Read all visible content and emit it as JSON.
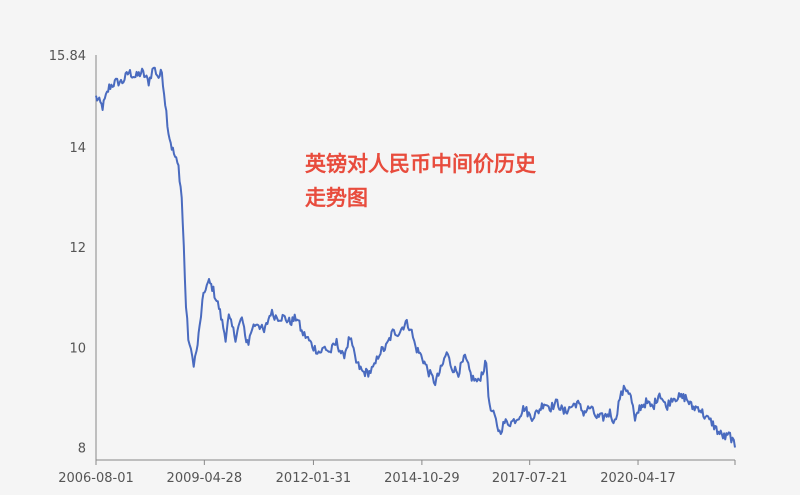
{
  "chart_data": {
    "type": "line",
    "title": [
      "英镑对人民币中间价历史",
      "走势图"
    ],
    "xlabel": "",
    "ylabel": "",
    "x_ticks": [
      "2006-08-01",
      "2009-04-28",
      "2012-01-31",
      "2014-10-29",
      "2017-07-21",
      "2020-04-17"
    ],
    "y_ticks": [
      "8",
      "10",
      "12",
      "14",
      "15.84"
    ],
    "ylim": [
      7.75,
      15.84
    ],
    "xlim": [
      "2006-08-01",
      "2022-09-30"
    ],
    "grid": false,
    "series": [
      {
        "color": "#4a6bbf",
        "x": [
          "2006-08-01",
          "2006-10-01",
          "2006-12-01",
          "2007-02-01",
          "2007-04-01",
          "2007-06-01",
          "2007-08-01",
          "2007-10-01",
          "2007-12-01",
          "2008-01-15",
          "2008-03-01",
          "2008-04-01",
          "2008-05-01",
          "2008-06-01",
          "2008-07-01",
          "2008-08-01",
          "2008-09-01",
          "2008-10-01",
          "2008-10-20",
          "2008-11-10",
          "2008-12-01",
          "2008-12-25",
          "2009-01-20",
          "2009-02-15",
          "2009-03-15",
          "2009-04-10",
          "2009-05-10",
          "2009-06-10",
          "2009-07-10",
          "2009-08-10",
          "2009-09-10",
          "2009-10-10",
          "2009-11-10",
          "2009-12-10",
          "2010-01-10",
          "2010-02-10",
          "2010-03-10",
          "2010-04-10",
          "2010-05-10",
          "2010-06-10",
          "2010-07-15",
          "2010-09-01",
          "2010-11-01",
          "2011-01-01",
          "2011-03-01",
          "2011-05-01",
          "2011-07-01",
          "2011-09-01",
          "2011-10-15",
          "2011-12-01",
          "2012-02-01",
          "2012-04-01",
          "2012-05-15",
          "2012-07-01",
          "2012-09-01",
          "2012-11-01",
          "2013-01-01",
          "2013-03-01",
          "2013-05-01",
          "2013-07-01",
          "2013-08-15",
          "2013-10-01",
          "2013-12-01",
          "2014-02-01",
          "2014-04-01",
          "2014-06-01",
          "2014-07-15",
          "2014-09-01",
          "2014-11-01",
          "2015-01-01",
          "2015-03-01",
          "2015-05-01",
          "2015-06-15",
          "2015-08-01",
          "2015-10-01",
          "2015-12-01",
          "2016-02-01",
          "2016-04-01",
          "2016-06-15",
          "2016-07-15",
          "2016-09-01",
          "2016-10-15",
          "2016-12-01",
          "2017-02-01",
          "2017-04-01",
          "2017-06-01",
          "2017-08-01",
          "2017-10-01",
          "2017-12-01",
          "2018-02-01",
          "2018-04-01",
          "2018-06-01",
          "2018-08-01",
          "2018-10-01",
          "2018-12-01",
          "2019-02-01",
          "2019-04-01",
          "2019-06-01",
          "2019-08-01",
          "2019-09-15",
          "2019-11-01",
          "2019-12-20",
          "2020-02-01",
          "2020-03-01",
          "2020-03-20",
          "2020-05-01",
          "2020-07-01",
          "2020-09-01",
          "2020-11-01",
          "2021-01-01",
          "2021-03-01",
          "2021-05-01",
          "2021-07-01",
          "2021-09-01",
          "2021-11-01",
          "2022-01-01",
          "2022-03-01",
          "2022-05-01",
          "2022-07-01",
          "2022-08-15",
          "2022-09-30"
        ],
        "values": [
          15.0,
          14.8,
          15.2,
          15.3,
          15.3,
          15.5,
          15.4,
          15.5,
          15.3,
          15.6,
          15.4,
          15.5,
          14.9,
          14.3,
          14.0,
          13.8,
          13.6,
          13.0,
          12.0,
          10.8,
          10.2,
          9.9,
          9.7,
          9.9,
          10.4,
          10.9,
          11.2,
          11.3,
          11.2,
          11.0,
          10.8,
          10.5,
          10.2,
          10.6,
          10.4,
          10.2,
          10.4,
          10.6,
          10.2,
          10.1,
          10.4,
          10.5,
          10.3,
          10.7,
          10.6,
          10.6,
          10.5,
          10.6,
          10.3,
          10.2,
          10.0,
          9.9,
          10.0,
          9.9,
          10.1,
          9.8,
          10.2,
          9.7,
          9.5,
          9.5,
          9.6,
          9.9,
          10.0,
          10.3,
          10.3,
          10.5,
          10.4,
          10.0,
          9.8,
          9.5,
          9.3,
          9.6,
          9.9,
          9.6,
          9.5,
          9.8,
          9.4,
          9.3,
          9.7,
          8.8,
          8.6,
          8.3,
          8.5,
          8.5,
          8.6,
          8.8,
          8.6,
          8.7,
          8.9,
          8.8,
          8.9,
          8.7,
          8.8,
          8.9,
          8.7,
          8.8,
          8.6,
          8.6,
          8.7,
          8.5,
          9.0,
          9.2,
          9.1,
          8.8,
          8.5,
          8.8,
          8.9,
          8.8,
          9.1,
          8.8,
          9.0,
          9.0,
          9.0,
          8.8,
          8.8,
          8.6,
          8.5,
          8.3,
          8.2,
          8.25,
          8.0
        ]
      }
    ]
  }
}
